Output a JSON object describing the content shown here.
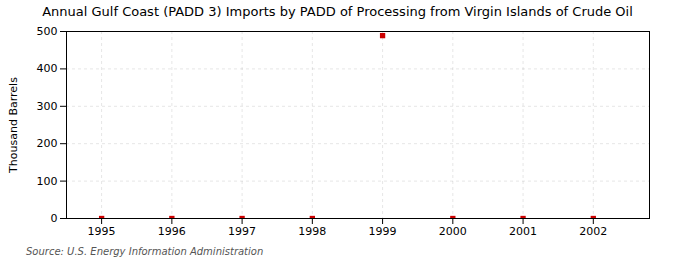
{
  "chart_data": {
    "type": "scatter",
    "title": "Annual Gulf Coast (PADD 3) Imports by PADD of Processing from Virgin Islands of Crude Oil",
    "ylabel": "Thousand Barrels",
    "source": "Source: U.S. Energy Information Administration",
    "x": [
      1995,
      1996,
      1997,
      1998,
      1999,
      2000,
      2001,
      2002
    ],
    "values": [
      0,
      0,
      0,
      0,
      489,
      0,
      0,
      0
    ],
    "color": "#cc0000",
    "marker": "square",
    "xlim": [
      1994.5,
      2002.8
    ],
    "xticks": [
      1995,
      1996,
      1997,
      1998,
      1999,
      2000,
      2001,
      2002
    ],
    "ylim": [
      0,
      500
    ],
    "yticks": [
      0,
      100,
      200,
      300,
      400,
      500
    ],
    "grid": true
  }
}
